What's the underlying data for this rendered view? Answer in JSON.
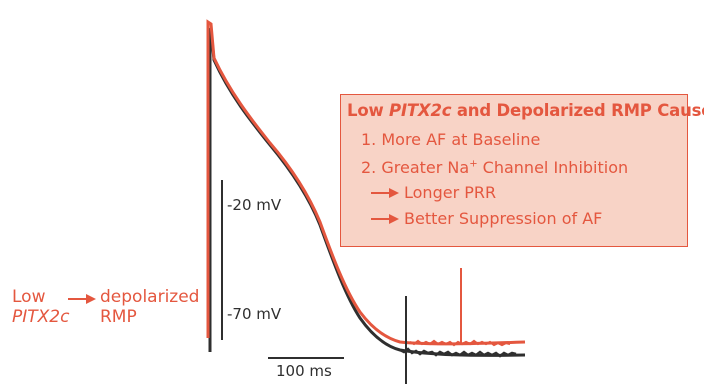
{
  "left_labels": {
    "low_pitx2c_line1": "Low",
    "low_pitx2c_line2": "PITX2c",
    "depolarized_line1": "depolarized",
    "depolarized_line2": "RMP"
  },
  "scale": {
    "mv_upper": "-20 mV",
    "mv_lower": "-70 mV",
    "time_bar": "100 ms"
  },
  "cause_box": {
    "title_prefix": "Low ",
    "title_gene": "PITX2c",
    "title_suffix": " and Depolarized RMP Cause",
    "item1": "1. More AF at Baseline",
    "item2_prefix": "2. Greater Na",
    "item2_sup": "+",
    "item2_suffix": " Channel Inhibition",
    "sub1": "Longer PRR",
    "sub2": "Better Suppression of AF"
  },
  "colors": {
    "red": "#e4573f",
    "dark": "#2f2f2f",
    "box_fill": "#f8d3c6"
  }
}
